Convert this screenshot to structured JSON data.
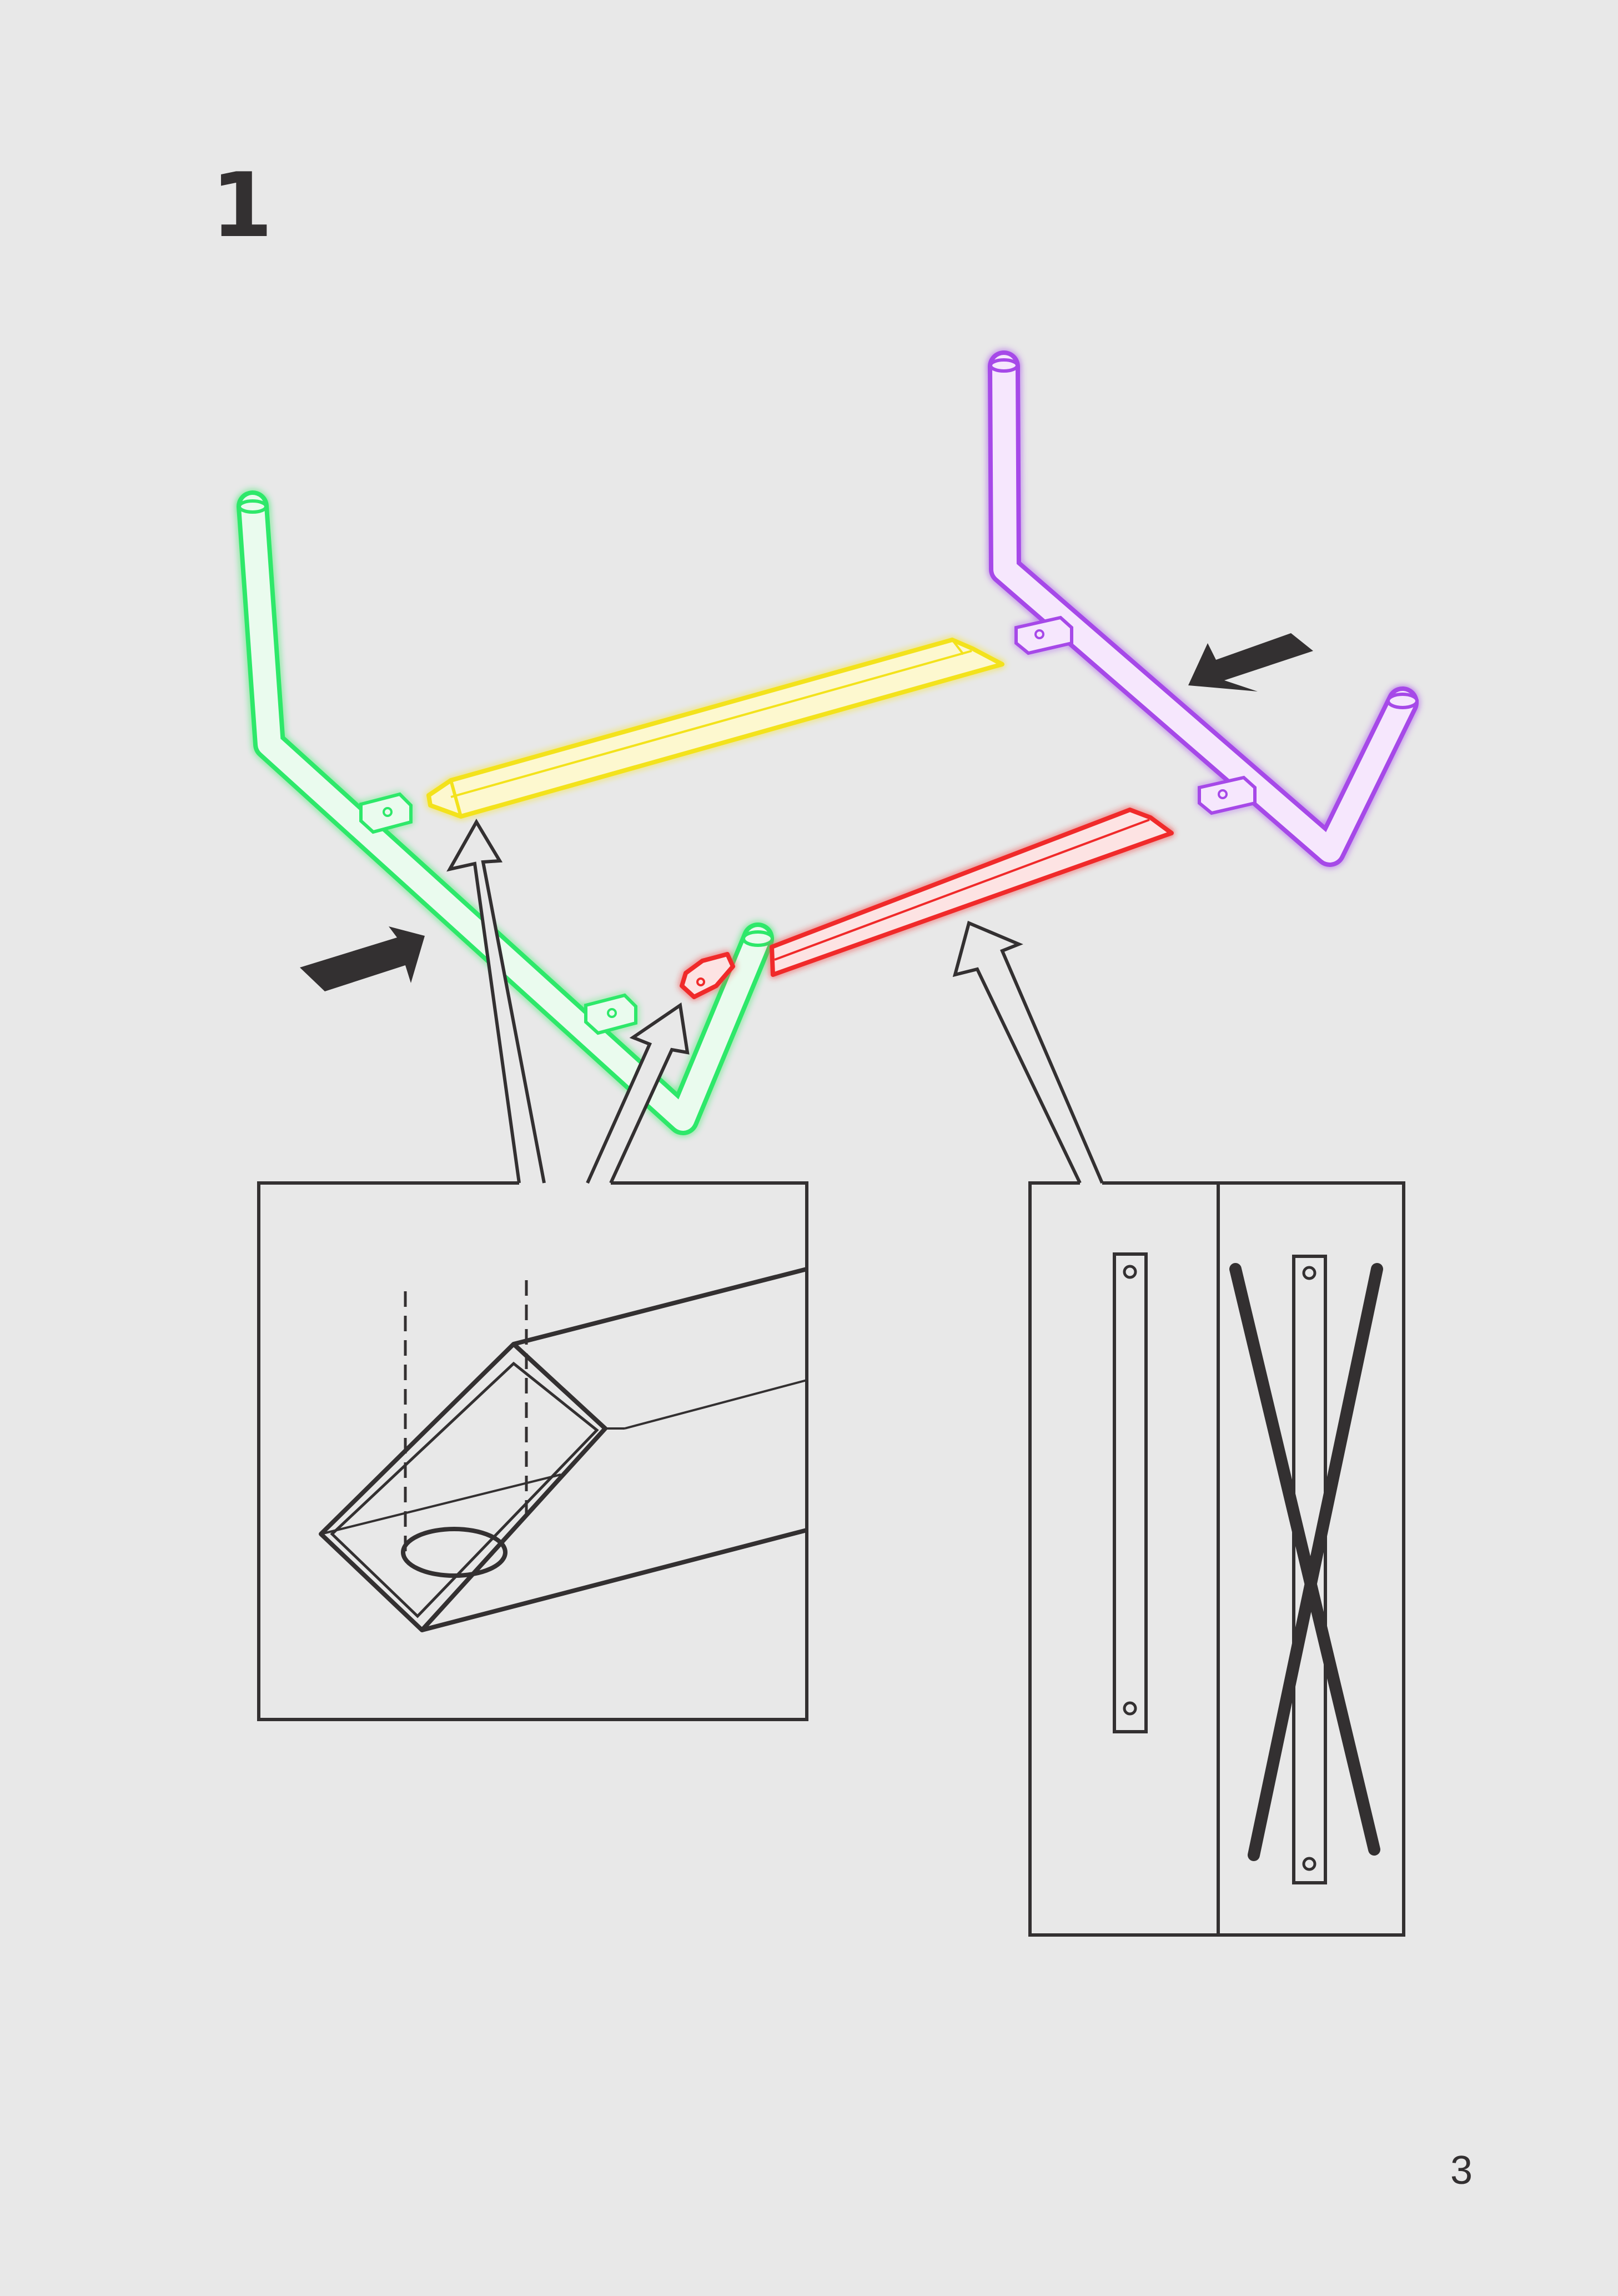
{
  "step": {
    "number": "1"
  },
  "page": {
    "number": "3"
  },
  "colors": {
    "background": "#e8e8e8",
    "ink": "#333031",
    "green_part": "#2ee86a",
    "yellow_part": "#f3e21c",
    "red_part": "#f02a2a",
    "purple_part": "#a64ae8"
  },
  "icons": {
    "push_arrow": "arrow-icon",
    "callout_arrow": "outline-arrow-icon",
    "check": "correct-orientation",
    "cross": "incorrect-orientation"
  }
}
